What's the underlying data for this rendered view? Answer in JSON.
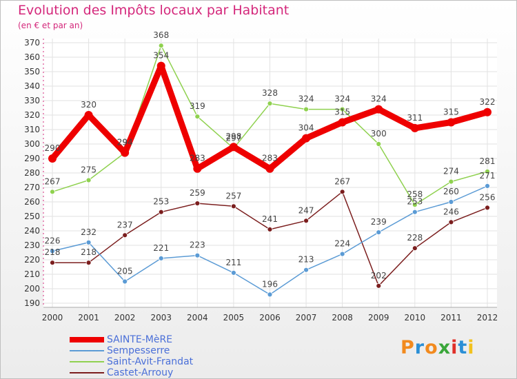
{
  "header": {
    "title": "Evolution des Impôts locaux par Habitant",
    "subtitle": "(en € et par an)"
  },
  "brand": {
    "text": "Proxiti",
    "colors": [
      "#f28a1e",
      "#2b8fd6",
      "#f28a1e",
      "#3aa63a",
      "#e0302a",
      "#2b8fd6",
      "#f2c21e"
    ]
  },
  "chart_data": {
    "type": "line",
    "title": "Evolution des Impôts locaux par Habitant",
    "subtitle": "(en € et par an)",
    "x": [
      "2000",
      "2001",
      "2002",
      "2003",
      "2004",
      "2005",
      "2006",
      "2007",
      "2008",
      "2009",
      "2010",
      "2011",
      "2012"
    ],
    "ylim": [
      190,
      370
    ],
    "yticks": [
      190,
      200,
      210,
      220,
      230,
      240,
      250,
      260,
      270,
      280,
      290,
      300,
      310,
      320,
      330,
      340,
      350,
      360,
      370
    ],
    "grid": true,
    "legend_position": "bottom-left",
    "series": [
      {
        "name": "SAINTE-MèRE",
        "color": "#ee0000",
        "values": [
          290,
          320,
          294,
          354,
          283,
          298,
          283,
          304,
          315,
          324,
          311,
          315,
          322
        ]
      },
      {
        "name": "Sempesserre",
        "color": "#5b9bd5",
        "values": [
          226,
          232,
          205,
          221,
          223,
          211,
          196,
          213,
          224,
          239,
          253,
          260,
          271
        ]
      },
      {
        "name": "Saint-Avit-Frandat",
        "color": "#8fd14f",
        "values": [
          267,
          275,
          294,
          368,
          319,
          297,
          328,
          324,
          324,
          300,
          258,
          274,
          281
        ]
      },
      {
        "name": "Castet-Arrouy",
        "color": "#7b1e1e",
        "values": [
          218,
          218,
          237,
          253,
          259,
          257,
          241,
          247,
          267,
          202,
          228,
          246,
          256
        ]
      }
    ]
  }
}
